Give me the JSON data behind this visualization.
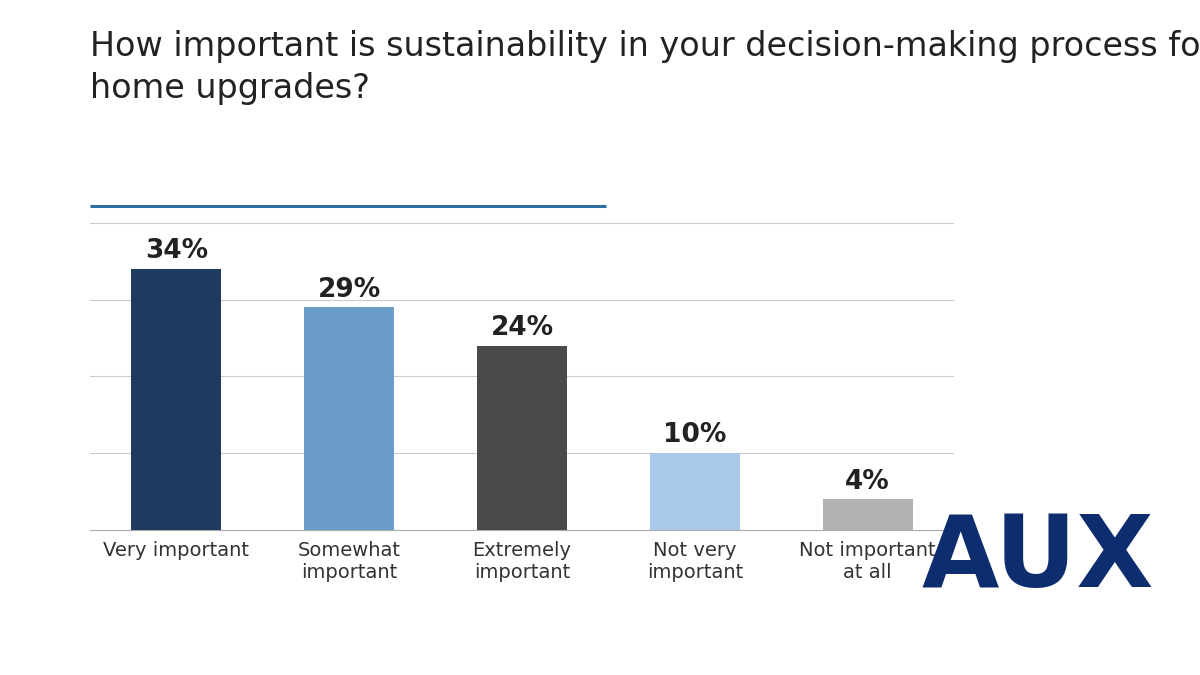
{
  "title_line1": "How important is sustainability in your decision-making process for",
  "title_line2": "home upgrades?",
  "categories": [
    "Very important",
    "Somewhat\nimportant",
    "Extremely\nimportant",
    "Not very\nimportant",
    "Not important\nat all"
  ],
  "values": [
    34,
    29,
    24,
    10,
    4
  ],
  "labels": [
    "34%",
    "29%",
    "24%",
    "10%",
    "4%"
  ],
  "bar_colors": [
    "#1e3a5f",
    "#6a9ec8",
    "#4a4a4a",
    "#aac8e8",
    "#b2b2b2"
  ],
  "background_color": "#ffffff",
  "title_fontsize": 24,
  "label_fontsize": 19,
  "tick_fontsize": 14,
  "ylim": [
    0,
    40
  ],
  "title_color": "#222222",
  "tick_color": "#333333",
  "grid_color": "#cccccc",
  "underline_color": "#2e6da4",
  "aux_color": "#0e2d6e",
  "aux_text": "AUX"
}
